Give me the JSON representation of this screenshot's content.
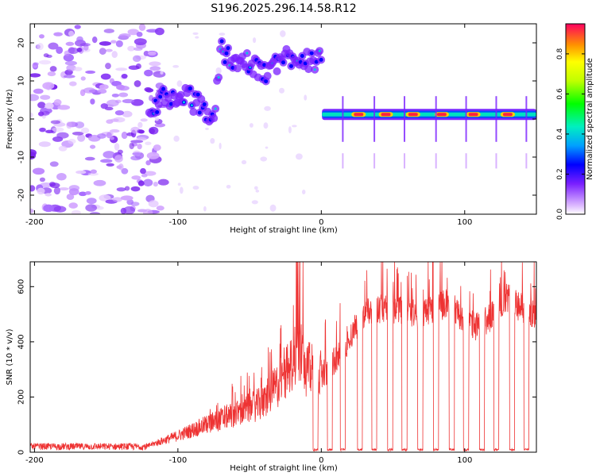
{
  "title": "S196.2025.296.14.58.R12",
  "chart_data": [
    {
      "type": "heatmap",
      "xlabel": "Height of straight line (km)",
      "ylabel": "Frequency (Hz)",
      "xlim": [
        -203,
        150
      ],
      "ylim": [
        -25,
        25
      ],
      "xticks": [
        -200,
        -100,
        0,
        100
      ],
      "xtick_labels": [
        "-200",
        "-100",
        "0",
        "100"
      ],
      "yticks": [
        20,
        10,
        0,
        -10,
        -20
      ],
      "ytick_labels": [
        "20",
        "10",
        "0",
        "-10",
        "-20"
      ],
      "colorbar": {
        "label": "Normalized spectral amplitude",
        "range": [
          0,
          0.95
        ],
        "ticks": [
          0.0,
          0.2,
          0.4,
          0.6,
          0.8
        ],
        "tick_labels": [
          "0.0",
          "0.2",
          "0.4",
          "0.6",
          "0.8"
        ]
      },
      "noise_region": {
        "x": [
          -203,
          -120
        ],
        "freq": [
          -25,
          25
        ]
      },
      "signal_track": {
        "x": [
          -120,
          -110,
          -100,
          -90,
          -80,
          -75,
          -70,
          -60,
          -50,
          -40,
          -30,
          -20,
          -10,
          0,
          0.5,
          150
        ],
        "freq": [
          4,
          5,
          6,
          5,
          2,
          0,
          18,
          16,
          14,
          12,
          15,
          17,
          16,
          15,
          0,
          1.5
        ]
      },
      "peak_markers_x": [
        15,
        37,
        58,
        80,
        101,
        122,
        143
      ],
      "pulse_centers_x": [
        26,
        45,
        64,
        84,
        106,
        130
      ]
    },
    {
      "type": "line",
      "xlabel": "Height of straight line (km)",
      "ylabel": "SNR (10 * v/v)",
      "xlim": [
        -203,
        150
      ],
      "ylim": [
        0,
        690
      ],
      "xticks": [
        -200,
        -100,
        0,
        100
      ],
      "xtick_labels": [
        "-200",
        "-100",
        "0",
        "100"
      ],
      "yticks": [
        0,
        200,
        400,
        600
      ],
      "ytick_labels": [
        "0",
        "200",
        "400",
        "600"
      ],
      "color": "#ee3333",
      "series": [
        {
          "name": "SNR",
          "x": [
            -203,
            -150,
            -120,
            -100,
            -80,
            -60,
            -40,
            -25,
            -15,
            -10,
            0,
            10,
            20,
            30,
            40,
            50,
            60,
            70,
            80,
            90,
            100,
            110,
            120,
            130,
            140,
            150
          ],
          "y": [
            20,
            20,
            25,
            60,
            100,
            140,
            180,
            280,
            380,
            300,
            280,
            330,
            420,
            500,
            520,
            520,
            510,
            500,
            530,
            540,
            460,
            460,
            500,
            560,
            520,
            500
          ]
        }
      ],
      "dropout_centers_x": [
        -4,
        6,
        15,
        27,
        37,
        48,
        58,
        69,
        80,
        91,
        101,
        112,
        122,
        133,
        143
      ]
    }
  ]
}
